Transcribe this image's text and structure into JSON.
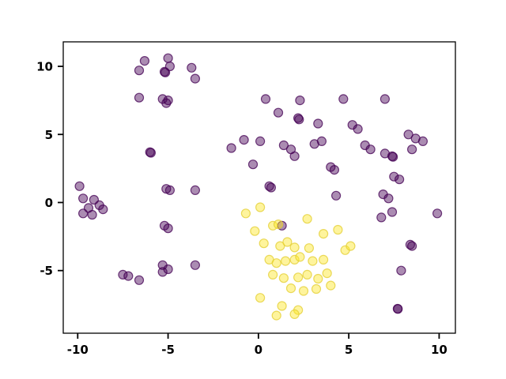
{
  "figure": {
    "background": "#ffffff",
    "axes_edge_color": "#000000"
  },
  "chart_data": {
    "type": "scatter",
    "title": "",
    "xlabel": "",
    "ylabel": "",
    "grid": false,
    "legend": "none",
    "xlim": [
      -10.8,
      10.9
    ],
    "ylim": [
      -9.6,
      11.8
    ],
    "xticks": [
      -10,
      -5,
      0,
      5,
      10
    ],
    "yticks": [
      -5,
      0,
      5,
      10
    ],
    "marker": {
      "radius": 5.5,
      "fill_opacity": 0.45,
      "edge_opacity": 0.75,
      "edge_width": 1.2
    },
    "series": [
      {
        "name": "cluster-0-purple",
        "color": "#440154",
        "edge_color": "#440154",
        "points": [
          [
            -6.3,
            10.4
          ],
          [
            -6.6,
            9.7
          ],
          [
            -5.0,
            10.6
          ],
          [
            -4.9,
            10.0
          ],
          [
            -5.2,
            9.6
          ],
          [
            -5.15,
            9.55
          ],
          [
            -3.7,
            9.9
          ],
          [
            -3.5,
            9.1
          ],
          [
            -6.6,
            7.7
          ],
          [
            -5.3,
            7.6
          ],
          [
            -5.0,
            7.5
          ],
          [
            -5.1,
            7.3
          ],
          [
            -9.9,
            1.2
          ],
          [
            -9.7,
            0.3
          ],
          [
            -9.1,
            0.2
          ],
          [
            -8.8,
            -0.2
          ],
          [
            -9.4,
            -0.4
          ],
          [
            -8.6,
            -0.5
          ],
          [
            -9.7,
            -0.8
          ],
          [
            -9.2,
            -0.9
          ],
          [
            -6.0,
            3.7
          ],
          [
            -5.95,
            3.65
          ],
          [
            -5.1,
            1.0
          ],
          [
            -4.9,
            0.9
          ],
          [
            -5.2,
            -1.7
          ],
          [
            -5.0,
            -1.9
          ],
          [
            -5.3,
            -4.6
          ],
          [
            -5.0,
            -4.9
          ],
          [
            -5.3,
            -5.1
          ],
          [
            -3.5,
            0.9
          ],
          [
            -3.5,
            -4.6
          ],
          [
            -7.5,
            -5.3
          ],
          [
            -7.2,
            -5.4
          ],
          [
            -6.6,
            -5.7
          ],
          [
            0.4,
            7.6
          ],
          [
            2.3,
            7.5
          ],
          [
            4.7,
            7.6
          ],
          [
            7.0,
            7.6
          ],
          [
            1.1,
            6.6
          ],
          [
            2.2,
            6.2
          ],
          [
            2.25,
            6.1
          ],
          [
            3.3,
            5.8
          ],
          [
            5.2,
            5.7
          ],
          [
            5.5,
            5.4
          ],
          [
            -1.5,
            4.0
          ],
          [
            -0.8,
            4.6
          ],
          [
            0.1,
            4.5
          ],
          [
            1.4,
            4.2
          ],
          [
            1.8,
            3.9
          ],
          [
            2.0,
            3.4
          ],
          [
            3.1,
            4.3
          ],
          [
            3.5,
            4.5
          ],
          [
            -0.3,
            2.8
          ],
          [
            4.0,
            2.6
          ],
          [
            4.2,
            2.4
          ],
          [
            5.9,
            4.2
          ],
          [
            6.2,
            3.9
          ],
          [
            7.0,
            3.6
          ],
          [
            7.4,
            3.4
          ],
          [
            7.45,
            3.35
          ],
          [
            7.5,
            1.9
          ],
          [
            7.8,
            1.7
          ],
          [
            8.3,
            5.0
          ],
          [
            8.7,
            4.7
          ],
          [
            9.1,
            4.5
          ],
          [
            8.5,
            3.9
          ],
          [
            0.6,
            1.2
          ],
          [
            0.7,
            1.1
          ],
          [
            4.3,
            0.5
          ],
          [
            6.9,
            0.6
          ],
          [
            7.2,
            0.3
          ],
          [
            7.4,
            -0.7
          ],
          [
            6.8,
            -1.1
          ],
          [
            9.9,
            -0.8
          ],
          [
            8.4,
            -3.1
          ],
          [
            8.5,
            -3.2
          ],
          [
            7.9,
            -5.0
          ],
          [
            7.7,
            -7.8
          ],
          [
            7.72,
            -7.82
          ],
          [
            1.3,
            -1.7
          ]
        ]
      },
      {
        "name": "cluster-1-yellow",
        "color": "#fde725",
        "edge_color": "#e3ce30",
        "points": [
          [
            -0.7,
            -0.8
          ],
          [
            0.1,
            -0.35
          ],
          [
            -0.2,
            -2.1
          ],
          [
            0.8,
            -1.7
          ],
          [
            1.1,
            -1.6
          ],
          [
            2.7,
            -1.2
          ],
          [
            3.6,
            -2.3
          ],
          [
            4.4,
            -2.0
          ],
          [
            0.3,
            -3.0
          ],
          [
            1.2,
            -3.2
          ],
          [
            1.6,
            -2.9
          ],
          [
            2.0,
            -3.3
          ],
          [
            2.8,
            -3.35
          ],
          [
            0.6,
            -4.2
          ],
          [
            1.0,
            -4.45
          ],
          [
            1.5,
            -4.3
          ],
          [
            2.0,
            -4.2
          ],
          [
            2.3,
            -4.0
          ],
          [
            3.0,
            -4.3
          ],
          [
            3.6,
            -4.2
          ],
          [
            0.8,
            -5.3
          ],
          [
            1.4,
            -5.55
          ],
          [
            2.2,
            -5.5
          ],
          [
            2.7,
            -5.3
          ],
          [
            3.3,
            -5.6
          ],
          [
            3.8,
            -5.2
          ],
          [
            1.8,
            -6.3
          ],
          [
            2.5,
            -6.5
          ],
          [
            3.2,
            -6.35
          ],
          [
            4.0,
            -6.1
          ],
          [
            0.1,
            -7.0
          ],
          [
            1.3,
            -7.6
          ],
          [
            2.2,
            -7.9
          ],
          [
            1.0,
            -8.3
          ],
          [
            2.0,
            -8.2
          ],
          [
            4.8,
            -3.5
          ],
          [
            5.1,
            -3.2
          ]
        ]
      }
    ]
  }
}
